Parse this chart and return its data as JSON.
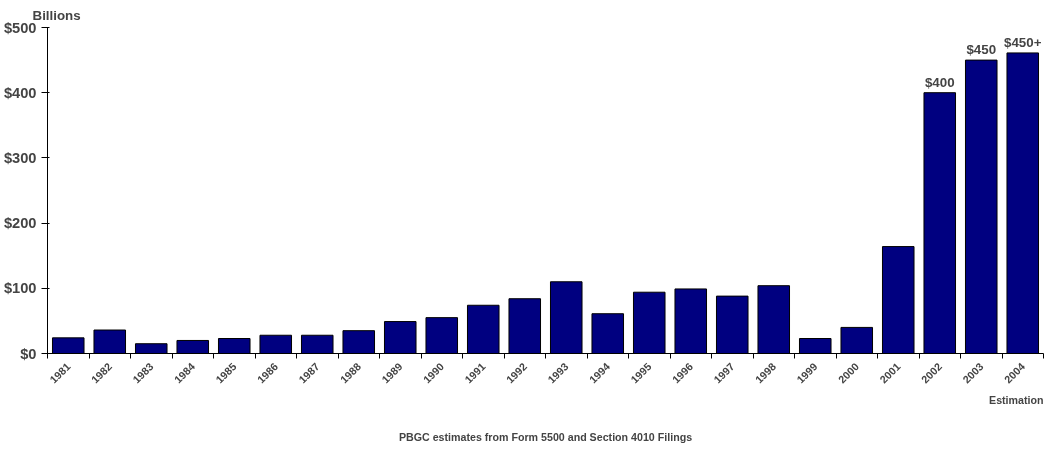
{
  "chart_data": {
    "type": "bar",
    "ylabel": "Billions",
    "categories": [
      "1981",
      "1982",
      "1983",
      "1984",
      "1985",
      "1986",
      "1987",
      "1988",
      "1989",
      "1990",
      "1991",
      "1992",
      "1993",
      "1994",
      "1995",
      "1996",
      "1997",
      "1998",
      "1999",
      "2000",
      "2001",
      "2002",
      "2003",
      "2004"
    ],
    "values": [
      24,
      36,
      15,
      20,
      23,
      28,
      28,
      35,
      49,
      55,
      74,
      84,
      110,
      61,
      94,
      99,
      88,
      104,
      23,
      40,
      164,
      400,
      450,
      461
    ],
    "value_labels": [
      null,
      null,
      null,
      null,
      null,
      null,
      null,
      null,
      null,
      null,
      null,
      null,
      null,
      null,
      null,
      null,
      null,
      null,
      null,
      null,
      null,
      "$400",
      "$450",
      "$450+"
    ],
    "color": "#000080",
    "ylim": [
      0,
      500
    ],
    "yticks": [
      {
        "value": 0,
        "label": "$0"
      },
      {
        "value": 100,
        "label": "$100"
      },
      {
        "value": 200,
        "label": "$200"
      },
      {
        "value": 300,
        "label": "$300"
      },
      {
        "value": 400,
        "label": "$400"
      },
      {
        "value": 500,
        "label": "$500"
      }
    ],
    "grid": false,
    "annotations": [
      "Estimation",
      "PBGC estimates from Form 5500 and Section 4010 Filings"
    ]
  }
}
